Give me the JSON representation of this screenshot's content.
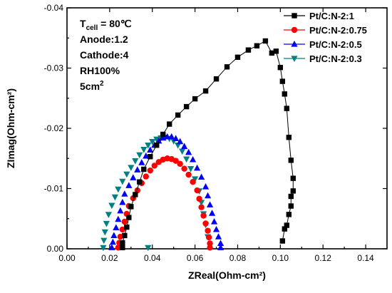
{
  "chart_data": {
    "type": "scatter",
    "xlabel": "ZReal(Ohm-cm²)",
    "ylabel": "ZImag(Ohm-cm²)",
    "xlim": [
      0.0,
      0.15
    ],
    "ylim": [
      0.0,
      -0.04
    ],
    "y_axis_inverted": true,
    "x_ticks": [
      "0.00",
      "0.02",
      "0.04",
      "0.06",
      "0.08",
      "0.10",
      "0.12",
      "0.14"
    ],
    "y_ticks": [
      "0.00",
      "-0.01",
      "-0.02",
      "-0.03",
      "-0.04"
    ],
    "legend_position": "top-right",
    "grid": false,
    "annotations": [
      {
        "text": "T",
        "sub": "cell",
        "suffix": " = 80℃"
      },
      {
        "text": "Anode:1.2"
      },
      {
        "text": "Cathode:4"
      },
      {
        "text": "RH100%"
      },
      {
        "text": "5cm",
        "sup": "2"
      }
    ],
    "series": [
      {
        "name": "Pt/C:N-2:1",
        "color": "#000000",
        "marker": "square",
        "x": [
          0.026,
          0.026,
          0.027,
          0.028,
          0.029,
          0.03,
          0.032,
          0.034,
          0.036,
          0.039,
          0.042,
          0.045,
          0.048,
          0.052,
          0.056,
          0.06,
          0.065,
          0.07,
          0.075,
          0.08,
          0.085,
          0.089,
          0.093,
          0.096,
          0.098,
          0.1,
          0.101,
          0.102,
          0.103,
          0.104,
          0.105,
          0.106,
          0.106,
          0.105,
          0.105,
          0.104,
          0.103,
          0.102,
          0.101
        ],
        "y": [
          -0.0002,
          -0.001,
          -0.0022,
          -0.0036,
          -0.0052,
          -0.007,
          -0.009,
          -0.0111,
          -0.0132,
          -0.0153,
          -0.0172,
          -0.019,
          -0.0207,
          -0.0222,
          -0.0236,
          -0.0249,
          -0.0262,
          -0.0282,
          -0.0302,
          -0.0318,
          -0.033,
          -0.0337,
          -0.0345,
          -0.0325,
          -0.0328,
          -0.0301,
          -0.0278,
          -0.0257,
          -0.0233,
          -0.0185,
          -0.0147,
          -0.0117,
          -0.0096,
          -0.0087,
          -0.0071,
          -0.0057,
          -0.0039,
          -0.0033,
          -0.0013
        ]
      },
      {
        "name": "Pt/C:N-2:0.75",
        "color": "#ff0000",
        "marker": "circle",
        "x": [
          0.024,
          0.0245,
          0.025,
          0.026,
          0.027,
          0.028,
          0.029,
          0.031,
          0.033,
          0.035,
          0.037,
          0.039,
          0.041,
          0.043,
          0.045,
          0.047,
          0.049,
          0.051,
          0.053,
          0.055,
          0.057,
          0.059,
          0.061,
          0.062,
          0.063,
          0.064,
          0.065,
          0.066,
          0.0665,
          0.067,
          0.067
        ],
        "y": [
          -0.0002,
          -0.001,
          -0.002,
          -0.0032,
          -0.0045,
          -0.0058,
          -0.0071,
          -0.0084,
          -0.0097,
          -0.0109,
          -0.012,
          -0.013,
          -0.0138,
          -0.0144,
          -0.0148,
          -0.015,
          -0.0149,
          -0.0146,
          -0.0141,
          -0.0133,
          -0.0123,
          -0.0111,
          -0.0097,
          -0.0083,
          -0.0069,
          -0.0055,
          -0.0042,
          -0.003,
          -0.0019,
          -0.0009,
          -0.0002
        ]
      },
      {
        "name": "Pt/C:N-2:0.5",
        "color": "#0000ff",
        "marker": "triangle-up",
        "x": [
          0.021,
          0.0215,
          0.022,
          0.023,
          0.024,
          0.025,
          0.026,
          0.027,
          0.029,
          0.031,
          0.033,
          0.035,
          0.037,
          0.039,
          0.041,
          0.043,
          0.045,
          0.047,
          0.049,
          0.051,
          0.053,
          0.055,
          0.057,
          0.059,
          0.061,
          0.063,
          0.065,
          0.066,
          0.067,
          0.068,
          0.069,
          0.07,
          0.071,
          0.072,
          0.072
        ],
        "y": [
          -0.0002,
          -0.0011,
          -0.0022,
          -0.0035,
          -0.0049,
          -0.0063,
          -0.0077,
          -0.0091,
          -0.0105,
          -0.0118,
          -0.0131,
          -0.0143,
          -0.0154,
          -0.0164,
          -0.0172,
          -0.0179,
          -0.0184,
          -0.0186,
          -0.0186,
          -0.0183,
          -0.0178,
          -0.017,
          -0.016,
          -0.0148,
          -0.0134,
          -0.0119,
          -0.0103,
          -0.0088,
          -0.0073,
          -0.0059,
          -0.0045,
          -0.0032,
          -0.002,
          -0.0009,
          -0.0002
        ]
      },
      {
        "name": "Pt/C:N-2:0.3",
        "color": "#008080",
        "marker": "triangle-down",
        "x": [
          0.017,
          0.0173,
          0.0178,
          0.0185,
          0.0195,
          0.021,
          0.0225,
          0.024,
          0.026,
          0.028,
          0.03,
          0.032,
          0.034,
          0.036,
          0.038,
          0.04,
          0.042,
          0.044,
          0.046,
          0.048,
          0.05,
          0.052,
          0.054,
          0.056,
          0.058,
          0.06,
          0.062,
          0.063,
          0.064,
          0.065,
          0.066,
          0.038
        ],
        "y": [
          -0.0002,
          -0.0014,
          -0.0028,
          -0.0042,
          -0.0057,
          -0.0072,
          -0.0086,
          -0.0099,
          -0.0112,
          -0.0124,
          -0.0135,
          -0.0146,
          -0.0156,
          -0.0165,
          -0.0172,
          -0.0178,
          -0.0182,
          -0.0184,
          -0.0185,
          -0.0183,
          -0.0179,
          -0.0172,
          -0.0162,
          -0.0149,
          -0.0133,
          -0.0116,
          -0.0096,
          -0.0077,
          -0.0058,
          -0.004,
          -0.002,
          -0.0002
        ]
      }
    ]
  }
}
